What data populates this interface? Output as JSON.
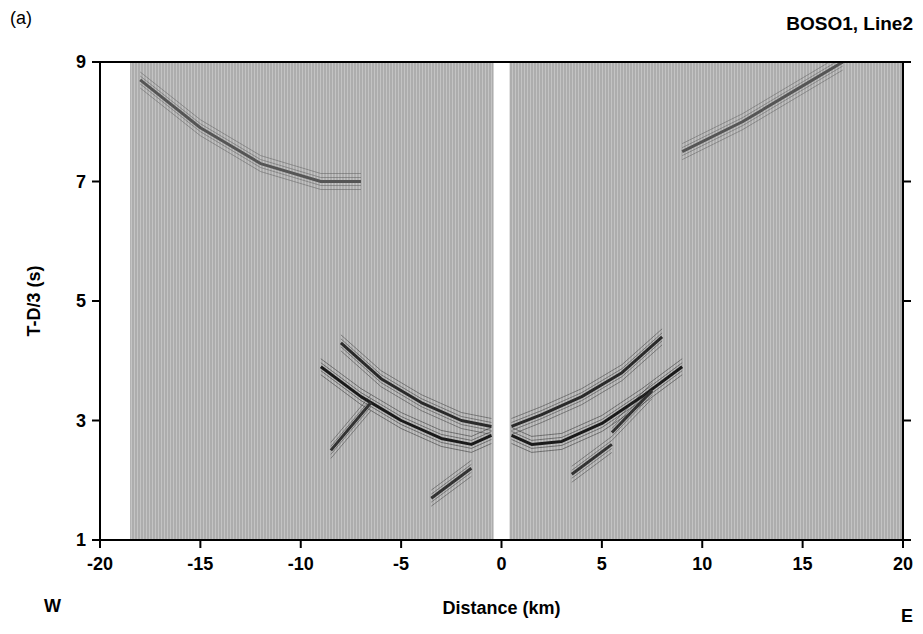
{
  "chart_data": {
    "type": "line",
    "title": "BOSO1, Line2",
    "panel_label": "(a)",
    "direction_labels": [
      "W",
      "E"
    ],
    "x_label": "Distance (km)",
    "y_label": "T-D/3 (s)",
    "xlim": [
      -20,
      20
    ],
    "ylim": [
      1,
      9
    ],
    "xticks": [
      -20,
      -15,
      -10,
      -5,
      0,
      5,
      10,
      15,
      20
    ],
    "yticks": [
      1,
      3,
      5,
      7,
      9
    ],
    "grid": false,
    "series": [
      {
        "type": "area",
        "color": "#c4c4c4",
        "x": [
          -18.5,
          -0.4
        ],
        "values": [
          9,
          9
        ]
      },
      {
        "type": "area",
        "color": "#c4c4c4",
        "x": [
          0.4,
          20
        ],
        "values": [
          9,
          9
        ]
      },
      {
        "type": "line",
        "color": "#1a1a1a",
        "x": [
          -9,
          -7,
          -5,
          -3,
          -1.5,
          -0.5,
          null,
          0.5,
          1.5,
          3,
          5,
          7,
          9
        ],
        "values": [
          3.9,
          3.4,
          3.0,
          2.7,
          2.6,
          2.75,
          null,
          2.75,
          2.6,
          2.65,
          2.95,
          3.4,
          3.9
        ]
      },
      {
        "type": "line",
        "color": "#2a2a2a",
        "x": [
          -8,
          -6,
          -4,
          -2,
          -0.5,
          null,
          0.5,
          2,
          4,
          6,
          8
        ],
        "values": [
          4.3,
          3.7,
          3.3,
          3.0,
          2.9,
          null,
          2.9,
          3.1,
          3.4,
          3.8,
          4.4
        ]
      },
      {
        "type": "line",
        "color": "#555555",
        "x": [
          -18,
          -15,
          -12,
          -9,
          -7,
          null,
          9,
          12,
          15,
          17
        ],
        "values": [
          8.7,
          7.9,
          7.3,
          7.0,
          7.0,
          null,
          7.5,
          8.0,
          8.6,
          9.0
        ]
      },
      {
        "type": "line",
        "color": "#333333",
        "x": [
          -8.5,
          -6.5,
          null,
          -3.5,
          -1.5,
          null,
          3.5,
          5.5,
          null,
          5.5,
          7.5
        ],
        "values": [
          2.5,
          3.3,
          null,
          1.7,
          2.2,
          null,
          2.1,
          2.6,
          null,
          2.8,
          3.5
        ]
      }
    ]
  }
}
